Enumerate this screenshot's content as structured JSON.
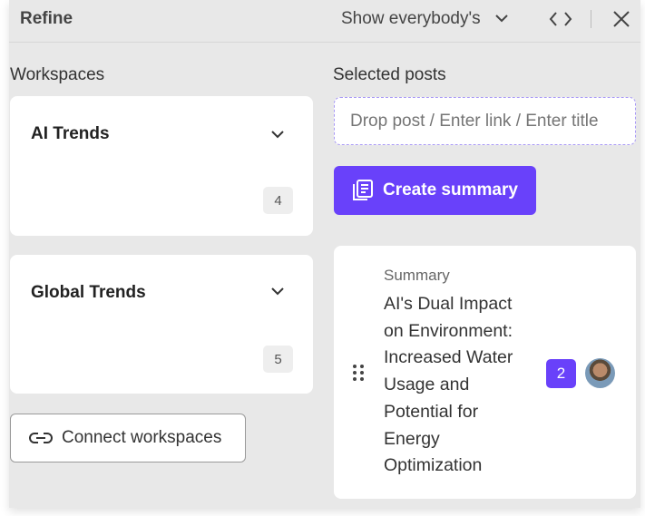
{
  "header": {
    "title": "Refine",
    "filter": "Show everybody's"
  },
  "workspaces": {
    "label": "Workspaces",
    "items": [
      {
        "name": "AI Trends",
        "count": "4"
      },
      {
        "name": "Global Trends",
        "count": "5"
      }
    ],
    "connect_label": "Connect workspaces"
  },
  "selected": {
    "label": "Selected posts",
    "placeholder": "Drop post / Enter link / Enter title",
    "create_label": "Create summary",
    "post": {
      "type": "Summary",
      "title": "AI's Dual Impact on Environment: Increased Water Usage and Potential for Energy Optimization",
      "count": "2"
    }
  },
  "colors": {
    "accent": "#6941fa"
  }
}
